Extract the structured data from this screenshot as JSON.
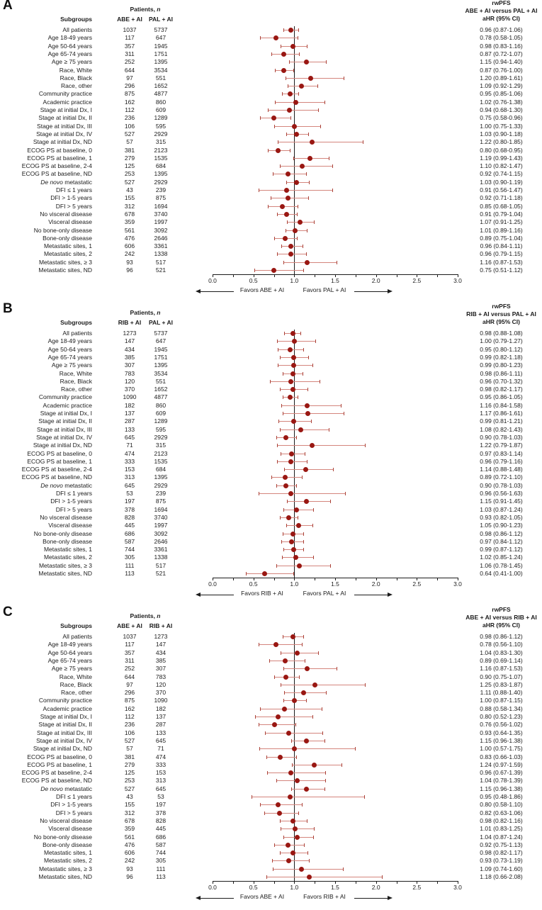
{
  "colors": {
    "marker": "#991712",
    "ci_line": "#d4857d",
    "ci_cap": "#ab4339",
    "axis": "#1c1c1c",
    "text": "#1c1c1c"
  },
  "row_schema": [
    "subgroup",
    "n_arm1",
    "n_arm2",
    "aHR",
    "ci_lower",
    "ci_upper",
    "aHR_text"
  ],
  "chart_data": [
    {
      "type": "forest",
      "panel": "A",
      "columns": {
        "patients_prefix": "Patients, ",
        "patients_n": "n",
        "subgroups": "Subgroups",
        "arm1": "ABE + AI",
        "arm2": "PAL + AI"
      },
      "title_lines": [
        "rwPFS",
        "ABE + AI versus PAL + AI",
        "aHR (95% CI)"
      ],
      "xlabel_left": "Favors ABE + AI",
      "xlabel_right": "Favors PAL + AI",
      "xlim": [
        0.0,
        3.0
      ],
      "xticks": [
        0.0,
        0.5,
        1.0,
        1.5,
        2.0,
        2.5,
        3.0
      ],
      "xtick_labels": [
        "0.0",
        "0.5",
        "1.0",
        "1.5",
        "2.0",
        "2.5",
        "3.0"
      ],
      "refline": 1.0,
      "italic_prefix": "De novo",
      "rows": [
        [
          "All patients",
          "1037",
          "5737",
          0.96,
          0.87,
          1.06,
          "0.96 (0.87-1.06)"
        ],
        [
          "Age 18-49 years",
          "117",
          "647",
          0.78,
          0.58,
          1.05,
          "0.78 (0.58-1.05)"
        ],
        [
          "Age 50-64 years",
          "357",
          "1945",
          0.98,
          0.83,
          1.16,
          "0.98 (0.83-1.16)"
        ],
        [
          "Age 65-74 years",
          "311",
          "1751",
          0.87,
          0.72,
          1.07,
          "0.87 (0.72-1.07)"
        ],
        [
          "Age ≥ 75 years",
          "252",
          "1395",
          1.15,
          0.94,
          1.4,
          "1.15 (0.94-1.40)"
        ],
        [
          "Race, White",
          "644",
          "3534",
          0.87,
          0.76,
          1.0,
          "0.87 (0.76-1.00)"
        ],
        [
          "Race, Black",
          "97",
          "551",
          1.2,
          0.89,
          1.61,
          "1.20 (0.89-1.61)"
        ],
        [
          "Race, other",
          "296",
          "1652",
          1.09,
          0.92,
          1.29,
          "1.09 (0.92-1.29)"
        ],
        [
          "Community practice",
          "875",
          "4877",
          0.95,
          0.85,
          1.06,
          "0.95 (0.85-1.06)"
        ],
        [
          "Academic practice",
          "162",
          "860",
          1.02,
          0.76,
          1.38,
          "1.02 (0.76-1.38)"
        ],
        [
          "Stage at initial Dx, I",
          "112",
          "609",
          0.94,
          0.68,
          1.3,
          "0.94 (0.68-1.30)"
        ],
        [
          "Stage at initial Dx, II",
          "236",
          "1289",
          0.75,
          0.58,
          0.96,
          "0.75 (0.58-0.96)"
        ],
        [
          "Stage at initial Dx, III",
          "106",
          "595",
          1.0,
          0.75,
          1.33,
          "1.00 (0.75-1.33)"
        ],
        [
          "Stage at initial Dx, IV",
          "527",
          "2929",
          1.03,
          0.9,
          1.18,
          "1.03 (0.90-1.18)"
        ],
        [
          "Stage at initial Dx, ND",
          "57",
          "315",
          1.22,
          0.8,
          1.85,
          "1.22 (0.80-1.85)"
        ],
        [
          "ECOG PS at baseline, 0",
          "381",
          "2123",
          0.8,
          0.68,
          0.95,
          "0.80 (0.68-0.95)"
        ],
        [
          "ECOG PS at baseline, 1",
          "279",
          "1535",
          1.19,
          0.99,
          1.43,
          "1.19 (0.99-1.43)"
        ],
        [
          "ECOG PS at baseline, 2-4",
          "125",
          "684",
          1.1,
          0.82,
          1.47,
          "1.10 (0.82-1.47)"
        ],
        [
          "ECOG PS at baseline, ND",
          "253",
          "1395",
          0.92,
          0.74,
          1.15,
          "0.92 (0.74-1.15)"
        ],
        [
          "De novo metastatic",
          "527",
          "2929",
          1.03,
          0.9,
          1.19,
          "1.03 (0.90-1.19)"
        ],
        [
          "DFI ≤ 1 years",
          "43",
          "239",
          0.91,
          0.56,
          1.47,
          "0.91 (0.56-1.47)"
        ],
        [
          "DFI > 1-5 years",
          "155",
          "875",
          0.92,
          0.71,
          1.18,
          "0.92 (0.71-1.18)"
        ],
        [
          "DFI > 5 years",
          "312",
          "1694",
          0.85,
          0.68,
          1.05,
          "0.85 (0.68-1.05)"
        ],
        [
          "No visceral disease",
          "678",
          "3740",
          0.91,
          0.79,
          1.04,
          "0.91 (0.79-1.04)"
        ],
        [
          "Visceral disease",
          "359",
          "1997",
          1.07,
          0.91,
          1.25,
          "1.07 (0.91-1.25)"
        ],
        [
          "No bone-only disease",
          "561",
          "3092",
          1.01,
          0.89,
          1.16,
          "1.01 (0.89-1.16)"
        ],
        [
          "Bone-only disease",
          "476",
          "2646",
          0.89,
          0.75,
          1.04,
          "0.89 (0.75-1.04)"
        ],
        [
          "Metastatic sites, 1",
          "606",
          "3361",
          0.96,
          0.84,
          1.11,
          "0.96 (0.84-1.11)"
        ],
        [
          "Metastatic sites, 2",
          "242",
          "1338",
          0.96,
          0.79,
          1.15,
          "0.96 (0.79-1.15)"
        ],
        [
          "Metastatic sites, ≥ 3",
          "93",
          "517",
          1.16,
          0.87,
          1.53,
          "1.16 (0.87-1.53)"
        ],
        [
          "Metastatic sites, ND",
          "96",
          "521",
          0.75,
          0.51,
          1.12,
          "0.75 (0.51-1.12)"
        ]
      ]
    },
    {
      "type": "forest",
      "panel": "B",
      "columns": {
        "patients_prefix": "Patients, ",
        "patients_n": "n",
        "subgroups": "Subgroups",
        "arm1": "RIB + AI",
        "arm2": "PAL + AI"
      },
      "title_lines": [
        "rwPFS",
        "RIB + AI versus PAL + AI",
        "aHR (95% CI)"
      ],
      "xlabel_left": "Favors RIB + AI",
      "xlabel_right": "Favors PAL + AI",
      "xlim": [
        0.0,
        3.0
      ],
      "xticks": [
        0.0,
        0.5,
        1.0,
        1.5,
        2.0,
        2.5,
        3.0
      ],
      "xtick_labels": [
        "0.0",
        "0.5",
        "1.0",
        "1.5",
        "2.0",
        "2.5",
        "3.0"
      ],
      "refline": 1.0,
      "italic_prefix": "De novo",
      "rows": [
        [
          "All patients",
          "1273",
          "5737",
          0.98,
          0.88,
          1.08,
          "0.98 (0.88-1.08)"
        ],
        [
          "Age 18-49 years",
          "147",
          "647",
          1.0,
          0.79,
          1.27,
          "1.00 (0.79-1.27)"
        ],
        [
          "Age 50-64 years",
          "434",
          "1945",
          0.95,
          0.8,
          1.12,
          "0.95 (0.80-1.12)"
        ],
        [
          "Age 65-74 years",
          "385",
          "1751",
          0.99,
          0.82,
          1.18,
          "0.99 (0.82-1.18)"
        ],
        [
          "Age ≥ 75 years",
          "307",
          "1395",
          0.99,
          0.8,
          1.23,
          "0.99 (0.80-1.23)"
        ],
        [
          "Race, White",
          "783",
          "3534",
          0.98,
          0.86,
          1.11,
          "0.98 (0.86-1.11)"
        ],
        [
          "Race, Black",
          "120",
          "551",
          0.96,
          0.7,
          1.32,
          "0.96 (0.70-1.32)"
        ],
        [
          "Race, other",
          "370",
          "1652",
          0.98,
          0.82,
          1.17,
          "0.98 (0.82-1.17)"
        ],
        [
          "Community practice",
          "1090",
          "4877",
          0.95,
          0.86,
          1.05,
          "0.95 (0.86-1.05)"
        ],
        [
          "Academic practice",
          "182",
          "860",
          1.16,
          0.84,
          1.58,
          "1.16 (0.84-1.58)"
        ],
        [
          "Stage at initial Dx, I",
          "137",
          "609",
          1.17,
          0.86,
          1.61,
          "1.17 (0.86-1.61)"
        ],
        [
          "Stage at initial Dx, II",
          "287",
          "1289",
          0.99,
          0.81,
          1.21,
          "0.99 (0.81-1.21)"
        ],
        [
          "Stage at initial Dx, III",
          "133",
          "595",
          1.08,
          0.82,
          1.43,
          "1.08 (0.82-1.43)"
        ],
        [
          "Stage at initial Dx, IV",
          "645",
          "2929",
          0.9,
          0.78,
          1.03,
          "0.90 (0.78-1.03)"
        ],
        [
          "Stage at initial Dx, ND",
          "71",
          "315",
          1.22,
          0.79,
          1.87,
          "1.22 (0.79-1.87)"
        ],
        [
          "ECOG PS at baseline, 0",
          "474",
          "2123",
          0.97,
          0.83,
          1.14,
          "0.97 (0.83-1.14)"
        ],
        [
          "ECOG PS at baseline, 1",
          "333",
          "1535",
          0.96,
          0.79,
          1.16,
          "0.96 (0.79-1.16)"
        ],
        [
          "ECOG PS at baseline, 2-4",
          "153",
          "684",
          1.14,
          0.88,
          1.48,
          "1.14 (0.88-1.48)"
        ],
        [
          "ECOG PS at baseline, ND",
          "313",
          "1395",
          0.89,
          0.72,
          1.1,
          "0.89 (0.72-1.10)"
        ],
        [
          "De novo metastatic",
          "645",
          "2929",
          0.9,
          0.78,
          1.03,
          "0.90 (0.78-1.03)"
        ],
        [
          "DFI ≤ 1 years",
          "53",
          "239",
          0.96,
          0.56,
          1.63,
          "0.96 (0.56-1.63)"
        ],
        [
          "DFI > 1-5 years",
          "197",
          "875",
          1.15,
          0.91,
          1.45,
          "1.15 (0.91-1.45)"
        ],
        [
          "DFI > 5 years",
          "378",
          "1694",
          1.03,
          0.87,
          1.24,
          "1.03 (0.87-1.24)"
        ],
        [
          "No visceral disease",
          "828",
          "3740",
          0.93,
          0.82,
          1.05,
          "0.93 (0.82-1.05)"
        ],
        [
          "Visceral disease",
          "445",
          "1997",
          1.05,
          0.9,
          1.23,
          "1.05 (0.90-1.23)"
        ],
        [
          "No bone-only disease",
          "686",
          "3092",
          0.98,
          0.86,
          1.12,
          "0.98 (0.86-1.12)"
        ],
        [
          "Bone-only disease",
          "587",
          "2646",
          0.97,
          0.84,
          1.12,
          "0.97 (0.84-1.12)"
        ],
        [
          "Metastatic sites, 1",
          "744",
          "3361",
          0.99,
          0.87,
          1.12,
          "0.99 (0.87-1.12)"
        ],
        [
          "Metastatic sites, 2",
          "305",
          "1338",
          1.02,
          0.85,
          1.24,
          "1.02 (0.85-1.24)"
        ],
        [
          "Metastatic sites, ≥ 3",
          "111",
          "517",
          1.06,
          0.78,
          1.45,
          "1.06 (0.78-1.45)"
        ],
        [
          "Metastatic sites, ND",
          "113",
          "521",
          0.64,
          0.41,
          1.0,
          "0.64 (0.41-1.00)"
        ]
      ]
    },
    {
      "type": "forest",
      "panel": "C",
      "columns": {
        "patients_prefix": "Patients, ",
        "patients_n": "n",
        "subgroups": "Subgroups",
        "arm1": "ABE + AI",
        "arm2": "RIB + AI"
      },
      "title_lines": [
        "rwPFS",
        "ABE + AI versus RIB + AI",
        "aHR (95% CI)"
      ],
      "xlabel_left": "Favors ABE + AI",
      "xlabel_right": "Favors RIB + AI",
      "xlim": [
        0.0,
        3.0
      ],
      "xticks": [
        0.0,
        0.5,
        1.0,
        1.5,
        2.0,
        2.5,
        3.0
      ],
      "xtick_labels": [
        "0.0",
        "0.5",
        "1.0",
        "1.5",
        "2.0",
        "2.5",
        "3.0"
      ],
      "refline": 1.0,
      "italic_prefix": "De novo",
      "rows": [
        [
          "All patients",
          "1037",
          "1273",
          0.98,
          0.86,
          1.12,
          "0.98 (0.86-1.12)"
        ],
        [
          "Age 18-49 years",
          "117",
          "147",
          0.78,
          0.56,
          1.1,
          "0.78 (0.56-1.10)"
        ],
        [
          "Age 50-64 years",
          "357",
          "434",
          1.04,
          0.83,
          1.3,
          "1.04 (0.83-1.30)"
        ],
        [
          "Age 65-74 years",
          "311",
          "385",
          0.89,
          0.69,
          1.14,
          "0.89 (0.69-1.14)"
        ],
        [
          "Age ≥ 75 years",
          "252",
          "307",
          1.16,
          0.87,
          1.53,
          "1.16 (0.87-1.53)"
        ],
        [
          "Race, White",
          "644",
          "783",
          0.9,
          0.75,
          1.07,
          "0.90 (0.75-1.07)"
        ],
        [
          "Race, Black",
          "97",
          "120",
          1.25,
          0.83,
          1.87,
          "1.25 (0.83-1.87)"
        ],
        [
          "Race, other",
          "296",
          "370",
          1.11,
          0.88,
          1.4,
          "1.11 (0.88-1.40)"
        ],
        [
          "Community practice",
          "875",
          "1090",
          1.0,
          0.87,
          1.15,
          "1.00 (0.87-1.15)"
        ],
        [
          "Academic practice",
          "162",
          "182",
          0.88,
          0.58,
          1.34,
          "0.88 (0.58-1.34)"
        ],
        [
          "Stage at initial Dx, I",
          "112",
          "137",
          0.8,
          0.52,
          1.23,
          "0.80 (0.52-1.23)"
        ],
        [
          "Stage at initial Dx, II",
          "236",
          "287",
          0.76,
          0.56,
          1.02,
          "0.76 (0.56-1.02)"
        ],
        [
          "Stage at initial Dx, III",
          "106",
          "133",
          0.93,
          0.64,
          1.35,
          "0.93 (0.64-1.35)"
        ],
        [
          "Stage at initial Dx, IV",
          "527",
          "645",
          1.15,
          0.96,
          1.38,
          "1.15 (0.96-1.38)"
        ],
        [
          "Stage at initial Dx, ND",
          "57",
          "71",
          1.0,
          0.57,
          1.75,
          "1.00 (0.57-1.75)"
        ],
        [
          "ECOG PS at baseline, 0",
          "381",
          "474",
          0.83,
          0.66,
          1.03,
          "0.83 (0.66-1.03)"
        ],
        [
          "ECOG PS at baseline, 1",
          "279",
          "333",
          1.24,
          0.97,
          1.59,
          "1.24 (0.97-1.59)"
        ],
        [
          "ECOG PS at baseline, 2-4",
          "125",
          "153",
          0.96,
          0.67,
          1.39,
          "0.96 (0.67-1.39)"
        ],
        [
          "ECOG PS at baseline, ND",
          "253",
          "313",
          1.04,
          0.78,
          1.39,
          "1.04 (0.78-1.39)"
        ],
        [
          "De novo metastatic",
          "527",
          "645",
          1.15,
          0.96,
          1.38,
          "1.15 (0.96-1.38)"
        ],
        [
          "DFI ≤ 1 years",
          "43",
          "53",
          0.95,
          0.48,
          1.86,
          "0.95 (0.48-1.86)"
        ],
        [
          "DFI > 1-5 years",
          "155",
          "197",
          0.8,
          0.58,
          1.1,
          "0.80 (0.58-1.10)"
        ],
        [
          "DFI > 5 years",
          "312",
          "378",
          0.82,
          0.63,
          1.06,
          "0.82 (0.63-1.06)"
        ],
        [
          "No visceral disease",
          "678",
          "828",
          0.98,
          0.82,
          1.16,
          "0.98 (0.82-1.16)"
        ],
        [
          "Visceral disease",
          "359",
          "445",
          1.01,
          0.83,
          1.25,
          "1.01 (0.83-1.25)"
        ],
        [
          "No bone-only disease",
          "561",
          "686",
          1.04,
          0.87,
          1.24,
          "1.04 (0.87-1.24)"
        ],
        [
          "Bone-only disease",
          "476",
          "587",
          0.92,
          0.75,
          1.13,
          "0.92 (0.75-1.13)"
        ],
        [
          "Metastatic sites, 1",
          "606",
          "744",
          0.98,
          0.82,
          1.17,
          "0.98 (0.82-1.17)"
        ],
        [
          "Metastatic sites, 2",
          "242",
          "305",
          0.93,
          0.73,
          1.19,
          "0.93 (0.73-1.19)"
        ],
        [
          "Metastatic sites, ≥ 3",
          "93",
          "111",
          1.09,
          0.74,
          1.6,
          "1.09 (0.74-1.60)"
        ],
        [
          "Metastatic sites, ND",
          "96",
          "113",
          1.18,
          0.66,
          2.08,
          "1.18 (0.66-2.08)"
        ]
      ]
    }
  ]
}
